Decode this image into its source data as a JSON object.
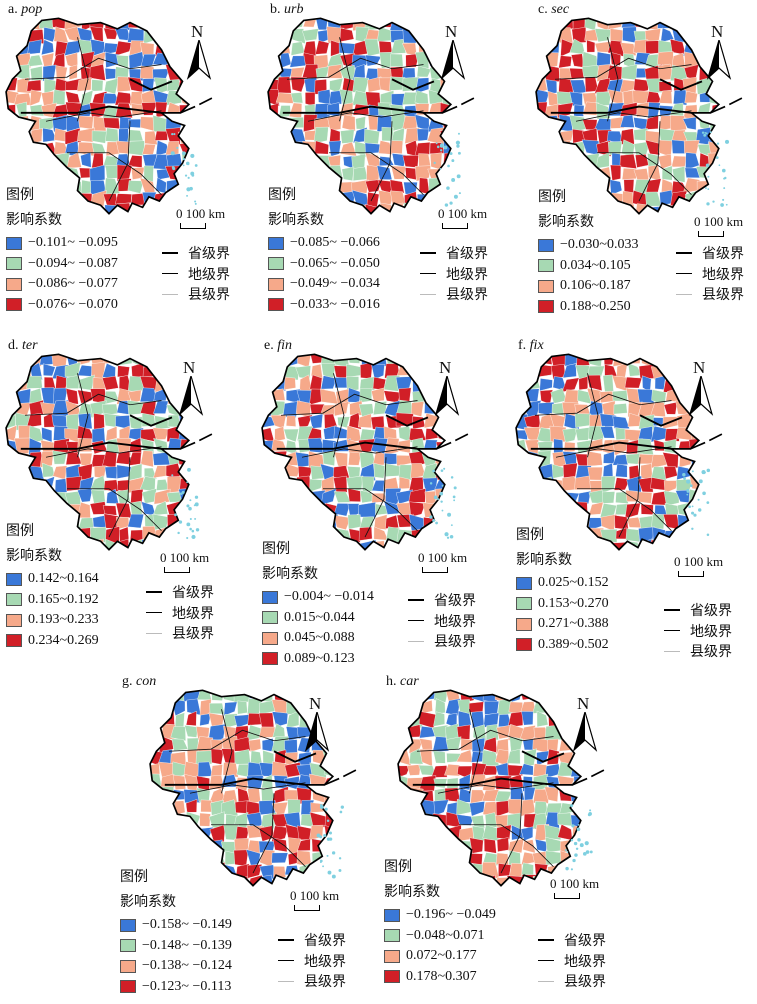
{
  "legend_title": "图例",
  "legend_subtitle": "影响系数",
  "scale_text": "0 100 km",
  "north_label": "N",
  "boundary_legend": [
    "省级界",
    "地级界",
    "县级界"
  ],
  "colors": [
    "#3a78d8",
    "#a7d9b3",
    "#f6a98a",
    "#d11f27"
  ],
  "panels": [
    {
      "id": "a",
      "prefix": "a. ",
      "var": "pop",
      "classes": [
        "−0.101~ −0.095",
        "−0.094~ −0.087",
        "−0.086~ −0.077",
        "−0.076~ −0.070"
      ]
    },
    {
      "id": "b",
      "prefix": "b. ",
      "var": "urb",
      "classes": [
        "−0.085~ −0.066",
        "−0.065~ −0.050",
        "−0.049~ −0.034",
        "−0.033~ −0.016"
      ]
    },
    {
      "id": "c",
      "prefix": "c. ",
      "var": "sec",
      "classes": [
        "−0.030~0.033",
        "0.034~0.105",
        "0.106~0.187",
        "0.188~0.250"
      ]
    },
    {
      "id": "d",
      "prefix": "d. ",
      "var": "ter",
      "classes": [
        "0.142~0.164",
        "0.165~0.192",
        "0.193~0.233",
        "0.234~0.269"
      ]
    },
    {
      "id": "e",
      "prefix": "e. ",
      "var": "fin",
      "classes": [
        "−0.004~ −0.014",
        "0.015~0.044",
        "0.045~0.088",
        "0.089~0.123"
      ]
    },
    {
      "id": "f",
      "prefix": "f. ",
      "var": "fix",
      "classes": [
        "0.025~0.152",
        "0.153~0.270",
        "0.271~0.388",
        "0.389~0.502"
      ]
    },
    {
      "id": "g",
      "prefix": "g. ",
      "var": "con",
      "classes": [
        "−0.158~ −0.149",
        "−0.148~ −0.139",
        "−0.138~ −0.124",
        "−0.123~ −0.113"
      ]
    },
    {
      "id": "h",
      "prefix": "h. ",
      "var": "car",
      "classes": [
        "−0.196~ −0.049",
        "−0.048~0.071",
        "0.072~0.177",
        "0.178~0.307"
      ]
    }
  ]
}
